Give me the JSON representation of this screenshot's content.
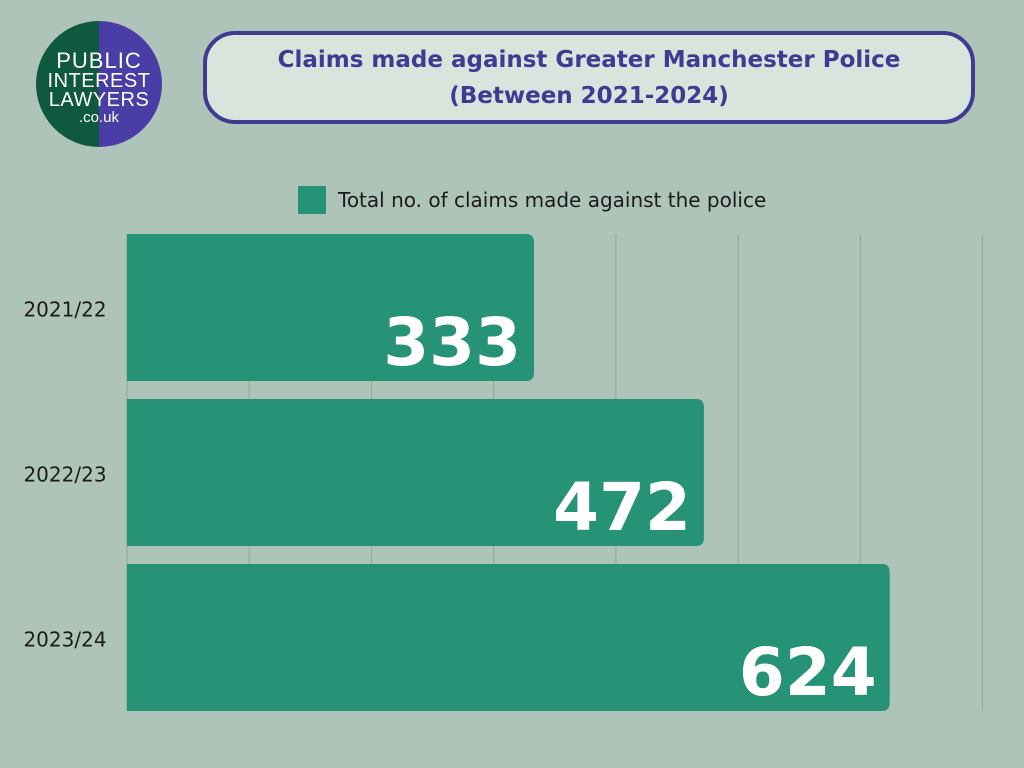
{
  "logo": {
    "lines": [
      "PUBLIC",
      "INTEREST",
      "LAWYERS",
      ".co.uk"
    ],
    "colors": {
      "left": "#0f5a3f",
      "right": "#4a3ea6",
      "text": "#ffffff"
    }
  },
  "title": {
    "line1": "Claims made against Greater Manchester Police",
    "line2": "(Between 2021-2024)"
  },
  "legend": {
    "label": "Total no. of claims made against the police",
    "color": "#269276"
  },
  "chart_data": {
    "type": "bar",
    "orientation": "horizontal",
    "categories": [
      "2021/22",
      "2022/23",
      "2023/24"
    ],
    "series": [
      {
        "name": "Total no. of claims made against the police",
        "values": [
          333,
          472,
          624
        ]
      }
    ],
    "xlim": [
      0,
      700
    ],
    "grid": true,
    "legend_position": "top-center",
    "bar_color": "#269276",
    "label_color": "#ffffff",
    "grid_color": "#8ea899"
  }
}
